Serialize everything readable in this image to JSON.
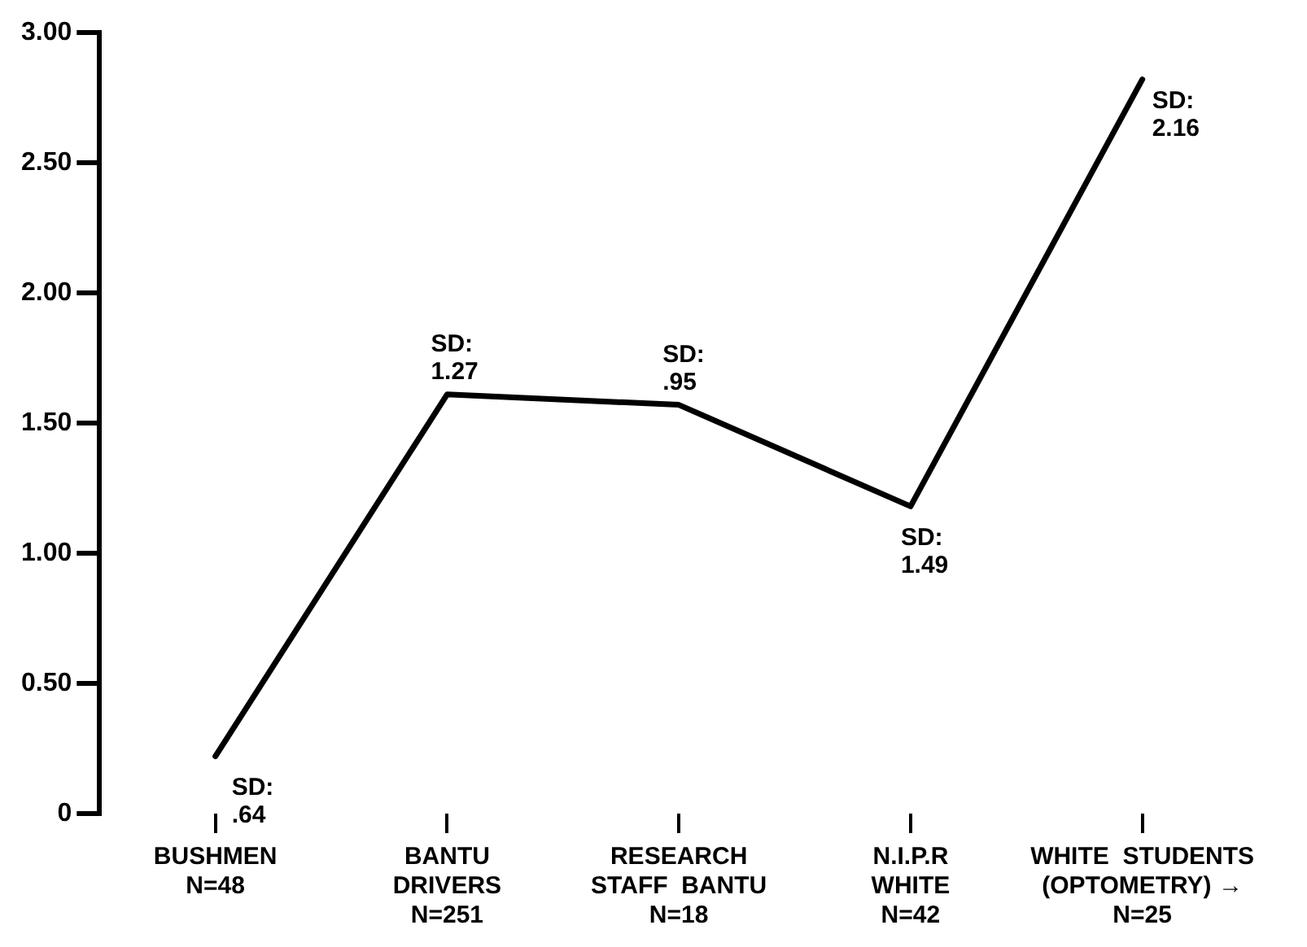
{
  "chart_data": {
    "type": "line",
    "categories": [
      "BUSHMEN\nN=48",
      "BANTU\nDRIVERS\nN=251",
      "RESEARCH\nSTAFF  BANTU\nN=18",
      "N.I.P.R\nWHITE\nN=42",
      "WHITE  STUDENTS\n(OPTOMETRY) →\nN=25"
    ],
    "series": [
      {
        "color": "#000000",
        "values": [
          0.22,
          1.61,
          1.57,
          1.18,
          2.82
        ]
      }
    ],
    "ylim": [
      0,
      3
    ],
    "yticks": [
      0,
      {
        "value": 0.5,
        "label": "0.50"
      },
      {
        "value": 1,
        "label": "1.00"
      },
      {
        "value": 1.5,
        "label": "1.50"
      },
      {
        "value": 2,
        "label": "2.00"
      },
      {
        "value": 2.5,
        "label": "2.50"
      },
      {
        "value": 3,
        "label": "3.00"
      }
    ],
    "annotations": [
      {
        "text": "SD:\n.64",
        "x": "BUSHMEN\nN=48",
        "y": 0.22
      },
      {
        "text": "SD:\n1.27",
        "x": "BANTU\nDRIVERS\nN=251",
        "y": 1.61
      },
      {
        "text": "SD:\n.95",
        "x": "RESEARCH\nSTAFF  BANTU\nN=18",
        "y": 1.57
      },
      {
        "text": "SD:\n1.49",
        "x": "N.I.P.R\nWHITE\nN=42",
        "y": 1.18
      },
      {
        "text": "SD:\n2.16",
        "x": "WHITE  STUDENTS\n(OPTOMETRY) →\nN=25",
        "y": 2.82
      }
    ],
    "grid": false,
    "legend": false,
    "marker": "none",
    "line_style": "solid"
  }
}
